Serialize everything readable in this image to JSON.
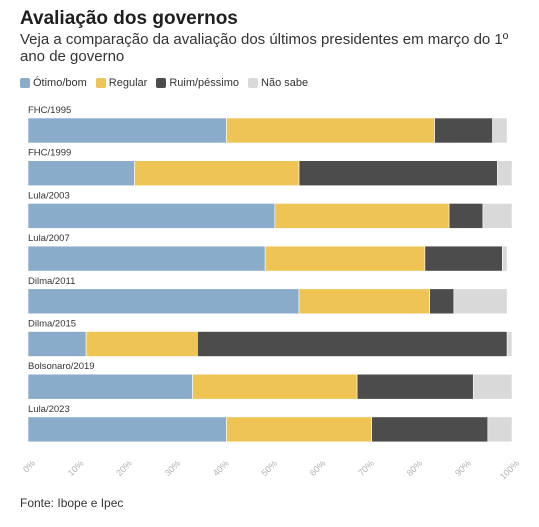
{
  "header": {
    "title": "Avaliação dos governos",
    "subtitle": "Veja a comparação da avaliação dos últimos presidentes em março do 1º ano de governo"
  },
  "legend": [
    {
      "label": "Ótimo/bom",
      "color": "#8aaccb"
    },
    {
      "label": "Regular",
      "color": "#eec454"
    },
    {
      "label": "Ruim/péssimo",
      "color": "#4c4c4c"
    },
    {
      "label": "Não sabe",
      "color": "#d9d9d9"
    }
  ],
  "source": "Fonte: Ibope e Ipec",
  "chart_data": {
    "type": "bar",
    "orientation": "horizontal",
    "stacked": true,
    "categories": [
      "FHC/1995",
      "FHC/1999",
      "Lula/2003",
      "Lula/2007",
      "Dilma/2011",
      "Dilma/2015",
      "Bolsonaro/2019",
      "Lula/2023"
    ],
    "series": [
      {
        "name": "Ótimo/bom",
        "color": "#8aaccb",
        "values": [
          41,
          22,
          51,
          49,
          56,
          12,
          34,
          41
        ]
      },
      {
        "name": "Regular",
        "color": "#eec454",
        "values": [
          43,
          34,
          36,
          33,
          27,
          23,
          34,
          30
        ]
      },
      {
        "name": "Ruim/péssimo",
        "color": "#4c4c4c",
        "values": [
          12,
          41,
          7,
          16,
          5,
          64,
          24,
          24
        ]
      },
      {
        "name": "Não sabe",
        "color": "#d9d9d9",
        "values": [
          3,
          3,
          6,
          1,
          11,
          1,
          8,
          5
        ]
      }
    ],
    "xlim": [
      0,
      100
    ],
    "xticks": [
      "0%",
      "10%",
      "20%",
      "30%",
      "40%",
      "50%",
      "60%",
      "70%",
      "80%",
      "90%",
      "100%"
    ],
    "grid": false,
    "legend_position": "top-left"
  }
}
